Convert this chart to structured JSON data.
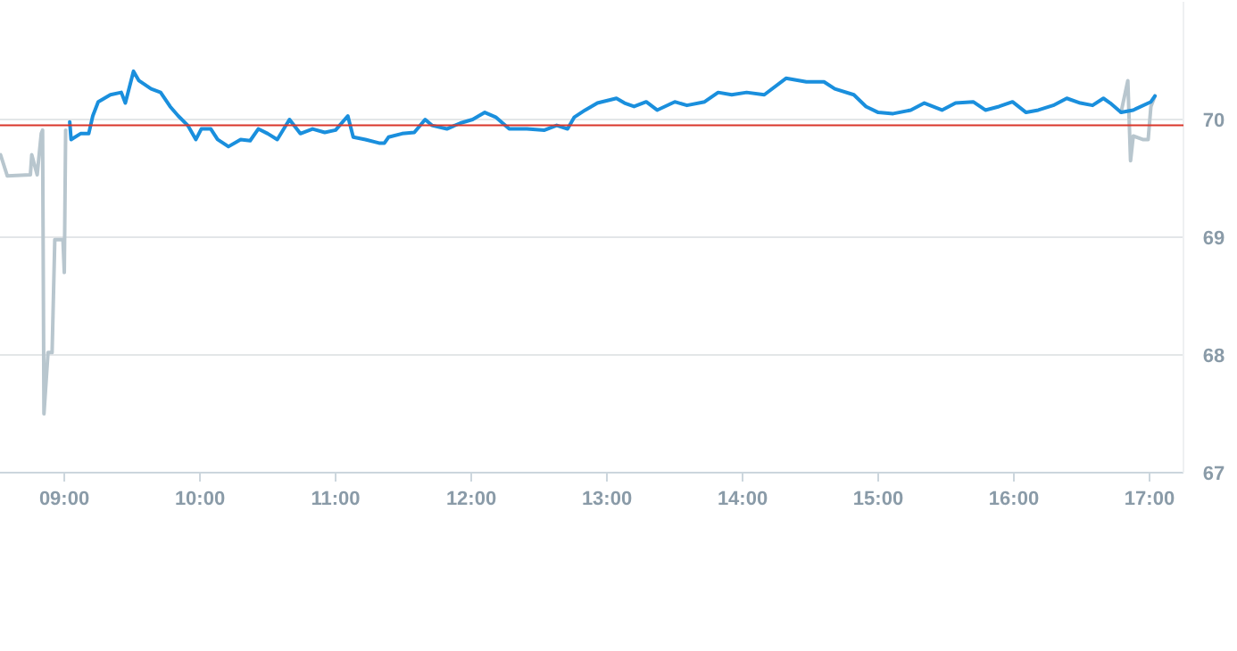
{
  "chart_data": {
    "type": "line",
    "xlim": [
      8.526,
      17.25
    ],
    "ylim": [
      67,
      71
    ],
    "xticks": [
      {
        "value": 9,
        "label": "09:00"
      },
      {
        "value": 10,
        "label": "10:00"
      },
      {
        "value": 11,
        "label": "11:00"
      },
      {
        "value": 12,
        "label": "12:00"
      },
      {
        "value": 13,
        "label": "13:00"
      },
      {
        "value": 14,
        "label": "14:00"
      },
      {
        "value": 15,
        "label": "15:00"
      },
      {
        "value": 16,
        "label": "16:00"
      },
      {
        "value": 17,
        "label": "17:00"
      }
    ],
    "yticks": [
      67,
      68,
      69,
      70
    ],
    "grid": "y",
    "line_style": "solid",
    "ref_lines": [
      {
        "axis": "y",
        "value": 69.95,
        "color": "#d9362b"
      }
    ],
    "series": [
      {
        "color": "#b8c6ce",
        "x": [
          8.53,
          8.58,
          8.75,
          8.76,
          8.8,
          8.83,
          8.84,
          8.85,
          8.88,
          8.91,
          8.93,
          8.99,
          9.0,
          9.01
        ],
        "values": [
          69.7,
          69.52,
          69.53,
          69.7,
          69.53,
          69.88,
          69.91,
          67.5,
          68.02,
          68.02,
          68.98,
          68.98,
          68.7,
          69.91
        ]
      },
      {
        "color": "#b8c6ce",
        "x": [
          16.79,
          16.84,
          16.86,
          16.88,
          16.95,
          16.99,
          17.01,
          17.04
        ],
        "values": [
          70.06,
          70.33,
          69.65,
          69.86,
          69.83,
          69.83,
          70.11,
          70.2
        ]
      },
      {
        "color": "#1a8fdd",
        "x": [
          9.04,
          9.05,
          9.12,
          9.18,
          9.21,
          9.25,
          9.34,
          9.42,
          9.45,
          9.51,
          9.55,
          9.64,
          9.71,
          9.78,
          9.84,
          9.91,
          9.97,
          10.01,
          10.08,
          10.13,
          10.21,
          10.3,
          10.37,
          10.43,
          10.5,
          10.57,
          10.66,
          10.74,
          10.83,
          10.92,
          11.0,
          11.09,
          11.13,
          11.22,
          11.32,
          11.36,
          11.39,
          11.49,
          11.58,
          11.66,
          11.71,
          11.82,
          11.92,
          12.01,
          12.1,
          12.18,
          12.28,
          12.41,
          12.54,
          12.63,
          12.71,
          12.76,
          12.84,
          12.93,
          13.07,
          13.13,
          13.2,
          13.29,
          13.37,
          13.5,
          13.59,
          13.72,
          13.82,
          13.92,
          14.03,
          14.16,
          14.32,
          14.47,
          14.6,
          14.68,
          14.82,
          14.91,
          15.0,
          15.11,
          15.24,
          15.34,
          15.47,
          15.57,
          15.7,
          15.79,
          15.89,
          15.99,
          16.09,
          16.18,
          16.29,
          16.39,
          16.49,
          16.58,
          16.66,
          16.71,
          16.79,
          16.88,
          17.01,
          17.04
        ],
        "values": [
          69.98,
          69.83,
          69.88,
          69.88,
          70.03,
          70.15,
          70.21,
          70.23,
          70.14,
          70.41,
          70.33,
          70.26,
          70.23,
          70.11,
          70.03,
          69.95,
          69.83,
          69.92,
          69.92,
          69.83,
          69.77,
          69.83,
          69.82,
          69.92,
          69.88,
          69.83,
          70.0,
          69.88,
          69.92,
          69.89,
          69.91,
          70.03,
          69.85,
          69.83,
          69.8,
          69.8,
          69.85,
          69.88,
          69.89,
          70.0,
          69.95,
          69.92,
          69.97,
          70.0,
          70.06,
          70.02,
          69.92,
          69.92,
          69.91,
          69.95,
          69.92,
          70.02,
          70.08,
          70.14,
          70.18,
          70.14,
          70.11,
          70.15,
          70.08,
          70.15,
          70.12,
          70.15,
          70.23,
          70.21,
          70.23,
          70.21,
          70.35,
          70.32,
          70.32,
          70.26,
          70.21,
          70.11,
          70.06,
          70.05,
          70.08,
          70.14,
          70.08,
          70.14,
          70.15,
          70.08,
          70.11,
          70.15,
          70.06,
          70.08,
          70.12,
          70.18,
          70.14,
          70.12,
          70.18,
          70.14,
          70.06,
          70.08,
          70.15,
          70.2
        ]
      }
    ]
  }
}
